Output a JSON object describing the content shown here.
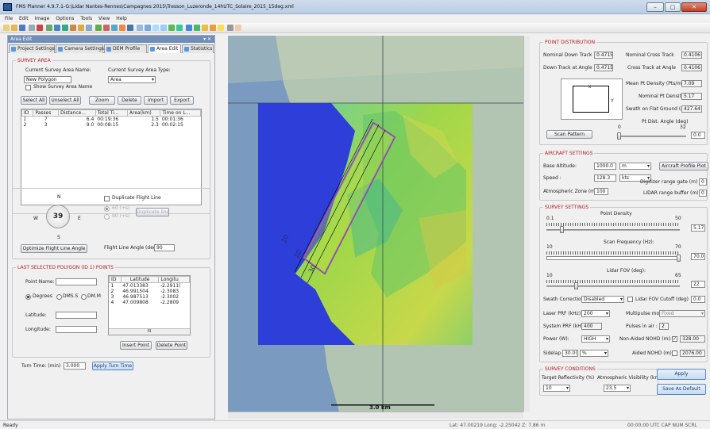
{
  "title": "FMS Planner 4.9.7.1-G:\\Lidar Nantes-Rennes\\Campagnes 2015\\Tresson_Luzeronde_14hUTC_Solaire_2015_15deg.xml",
  "window_controls": {
    "min": "–",
    "max": "□",
    "close": "✕"
  },
  "menu": [
    "File",
    "Edit",
    "Image",
    "Options",
    "Tools",
    "View",
    "Help"
  ],
  "left_panel": {
    "header": "Area Edit",
    "header_controls": "▾ ✕",
    "tabs": [
      "Project Settings",
      "Camera Settings",
      "DEM Profile",
      "Area Edit",
      "Statistics"
    ],
    "survey_area": {
      "title": "SURVEY AREA",
      "name_label": "Current Survey Area Name:",
      "name_value": "New Polygon",
      "type_label": "Current Survey Area Type:",
      "type_value": "Area",
      "show_label": "Show Survey Area Name",
      "buttons": [
        "Select All",
        "Unselect All",
        "Zoom",
        "Delete",
        "Import",
        "Export"
      ],
      "columns": [
        "ID",
        "Passes",
        "Distance...",
        "Total Ti...",
        "Area(km)",
        "Time on L..."
      ],
      "rows": [
        [
          "1",
          "7",
          "6.4",
          "00:19:36",
          "1.5",
          "00:01:36"
        ],
        [
          "2",
          "3",
          "9.0",
          "00:08:15",
          "2.3",
          "00:02:15"
        ]
      ]
    },
    "orientation": {
      "n": "N",
      "s": "S",
      "e": "E",
      "w": "W",
      "angle": "39",
      "duplicate_label": "Duplicate Flight Line",
      "dup_opt1": "60 (+s)",
      "dup_opt2": "90 (+s)",
      "duplicate_btn": "Duplicate line",
      "optimize_btn": "Optimize Flight Line Angle",
      "angle_label": "Flight Line Angle (deg)",
      "angle_value": "90"
    },
    "polygon": {
      "title": "LAST SELECTED POLYGON (ID 1) POINTS",
      "point_name_label": "Point Name:",
      "degrees": "Degrees",
      "dms": "DMS.S",
      "dmm": "DM.M",
      "lat_label": "Latitude:",
      "lon_label": "Longitude:",
      "columns": [
        "ID",
        "Latitude",
        "Longitu"
      ],
      "rows": [
        [
          "1",
          "47.013383",
          "-2.2911("
        ],
        [
          "2",
          "46.991504",
          "-2.3083"
        ],
        [
          "3",
          "46.987513",
          "-2.3002"
        ],
        [
          "4",
          "47.009808",
          "-2.2809"
        ]
      ],
      "scroll_mid": "III",
      "insert_btn": "Insert Point",
      "delete_btn": "Delete Point"
    },
    "turn_label": "Turn Time: (min)",
    "turn_value": "3.000",
    "turn_btn": "Apply Turn Time"
  },
  "map": {
    "scale_text": "3.0 km",
    "line_labels": [
      "10",
      "20",
      "30"
    ]
  },
  "right_panel": {
    "point_dist": {
      "title": "POINT DISTRIBUTION",
      "ndt_label": "Nominal Down Track",
      "ndt_value": "0.4715",
      "nct_label": "Nominal Cross Track",
      "nct_value": "0.4106",
      "dta_label": "Down Track at Angle",
      "dta_value": "0.4715",
      "cta_label": "Cross Track at Angle",
      "cta_value": "0.4106",
      "mean_label": "Mean Pt Density (Pts/m2)",
      "mean_value": "7.09",
      "nominal_label": "Nominal Pt Density",
      "nominal_value": "5.17",
      "swath_label": "Swath on Flat Ground (m)",
      "swath_value": "427.64",
      "diag_x": "x",
      "diag_y": "Y",
      "scan_btn": "Scan Pattern",
      "angle_label": "Pt Dist. Angle (deg)",
      "angle_min": "0",
      "angle_max": "32",
      "angle_value": "0.0"
    },
    "aircraft": {
      "title": "AIRCRAFT SETTINGS",
      "alt_label": "Base Altitude:",
      "alt_value": "1000.0",
      "alt_unit": "m",
      "profile_btn": "Aircraft Profile Plot",
      "speed_label": "Speed :",
      "speed_value": "128.3",
      "speed_unit": "kts",
      "gate_label": "Digitizer range gate (m)",
      "gate_value": "0",
      "atm_label": "Atmospheric Zone (m)",
      "atm_value": "100",
      "buffer_label": "LIDAR range buffer (m)",
      "buffer_value": "0"
    },
    "survey": {
      "title": "SURVEY SETTINGS",
      "pd_label": "Point Density",
      "pd_min": "0.1",
      "pd_max": "50",
      "pd_value": "5.17",
      "sf_label": "Scan Frequency (Hz):",
      "sf_min": "10",
      "sf_max": "70",
      "sf_value": "70.0",
      "fov_label": "Lidar FOV (deg):",
      "fov_min": "10",
      "fov_max": "65",
      "fov_value": "22",
      "swc_label": "Swath Correction",
      "swc_value": "Disabled",
      "cutoff_label": "Lidar FOV Cutoff (deg)",
      "cutoff_value": "0.0",
      "lprf_label": "Laser PRF (kHz):",
      "lprf_value": "200",
      "mm_label": "Multipulse mode",
      "mm_value": "Fixed",
      "sprf_label": "System PRF (kHz):",
      "sprf_value": "400",
      "pia_label": "Pulses in air :",
      "pia_value": "2",
      "power_label": "Power (W):",
      "power_value": "HIGH",
      "nonaided_label": "Non-Aided NOHD (m):",
      "nonaided_value": "328.00",
      "sidelap_label": "Sidelap :",
      "sidelap_value": "30.0(",
      "sidelap_unit": "%",
      "aided_label": "Aided NOHD (m):",
      "aided_value": "2076.00"
    },
    "conditions": {
      "title": "SURVEY CONDITIONS",
      "refl_label": "Target Reflectivity (%)",
      "refl_value": "10",
      "vis_label": "Atmospheric Visibility (km)",
      "vis_value": "23.5",
      "apply_btn": "Apply",
      "save_btn": "Save As Default"
    }
  },
  "status": {
    "left": "Ready",
    "coords": "Lat: 47.00219  Long: -2.25042  Z: 7.86 m",
    "right": "00:00:00 UTC  CAP  NUM  SCRL"
  }
}
